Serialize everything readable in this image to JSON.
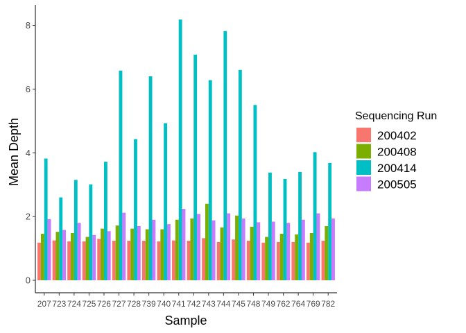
{
  "chart_data": {
    "type": "bar",
    "title": "",
    "xlabel": "Sample",
    "ylabel": "Mean Depth",
    "ylim": [
      0,
      8.6
    ],
    "yticks": [
      0,
      2,
      4,
      6,
      8
    ],
    "grid": false,
    "legend_title": "Sequencing Run",
    "legend_position": "right",
    "categories": [
      "207",
      "723",
      "724",
      "725",
      "726",
      "727",
      "728",
      "739",
      "740",
      "741",
      "742",
      "743",
      "744",
      "745",
      "748",
      "749",
      "762",
      "764",
      "769",
      "782"
    ],
    "series": [
      {
        "name": "200402",
        "color": "#F8766D",
        "values": [
          1.18,
          1.25,
          1.22,
          1.22,
          1.3,
          1.24,
          1.24,
          1.24,
          1.22,
          1.25,
          1.24,
          1.32,
          1.2,
          1.28,
          1.24,
          1.18,
          1.2,
          1.2,
          1.18,
          1.24
        ]
      },
      {
        "name": "200408",
        "color": "#7CAE00",
        "values": [
          1.46,
          1.52,
          1.48,
          1.36,
          1.62,
          1.72,
          1.62,
          1.6,
          1.6,
          1.9,
          1.94,
          2.4,
          1.66,
          2.03,
          1.68,
          1.36,
          1.46,
          1.44,
          1.48,
          1.7
        ]
      },
      {
        "name": "200414",
        "color": "#00BFC4",
        "values": [
          3.82,
          2.6,
          3.15,
          3.01,
          3.72,
          6.58,
          4.43,
          6.4,
          4.93,
          8.18,
          7.08,
          6.28,
          7.82,
          6.6,
          5.5,
          3.38,
          3.18,
          3.4,
          4.02,
          3.68
        ]
      },
      {
        "name": "200505",
        "color": "#C77CFF",
        "values": [
          1.92,
          1.58,
          1.8,
          1.42,
          1.54,
          2.12,
          1.7,
          1.9,
          1.76,
          2.24,
          2.08,
          1.88,
          2.1,
          1.94,
          1.82,
          1.84,
          1.8,
          1.9,
          2.1,
          1.94
        ]
      }
    ]
  }
}
